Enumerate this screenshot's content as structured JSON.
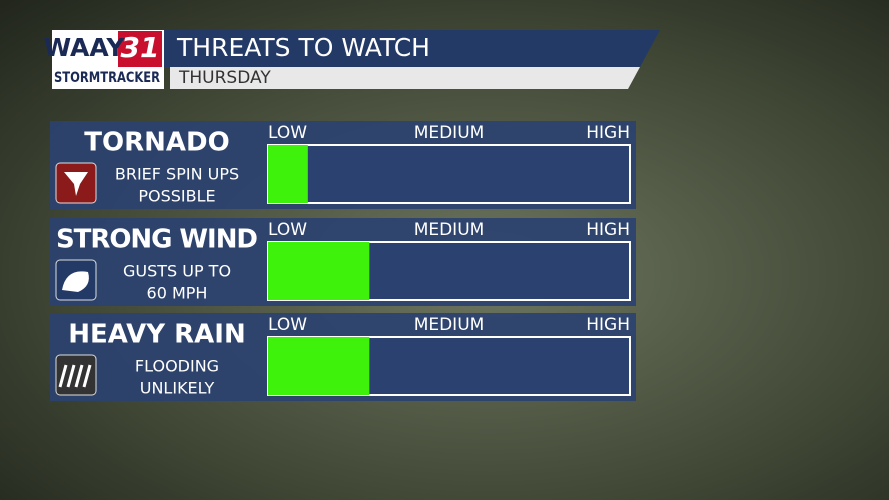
{
  "logo": {
    "station": "WAAY",
    "channel": "31",
    "brand": "STORMTRACKER"
  },
  "chart_data": {
    "type": "bar",
    "title": "THREATS TO WATCH",
    "subtitle": "THURSDAY",
    "categories": [
      "TORNADO",
      "STRONG WIND",
      "HEAVY RAIN"
    ],
    "descriptions": [
      [
        "BRIEF SPIN UPS",
        "POSSIBLE"
      ],
      [
        "GUSTS UP TO",
        "60 MPH"
      ],
      [
        "FLOODING",
        "UNLIKELY"
      ]
    ],
    "values": [
      0.11,
      0.28,
      0.28
    ],
    "color": "#3ff20c",
    "xlim": [
      0,
      1
    ],
    "xticks": [
      {
        "value": 0,
        "label": "LOW"
      },
      {
        "value": 0.5,
        "label": "MEDIUM"
      },
      {
        "value": 1,
        "label": "HIGH"
      }
    ]
  }
}
